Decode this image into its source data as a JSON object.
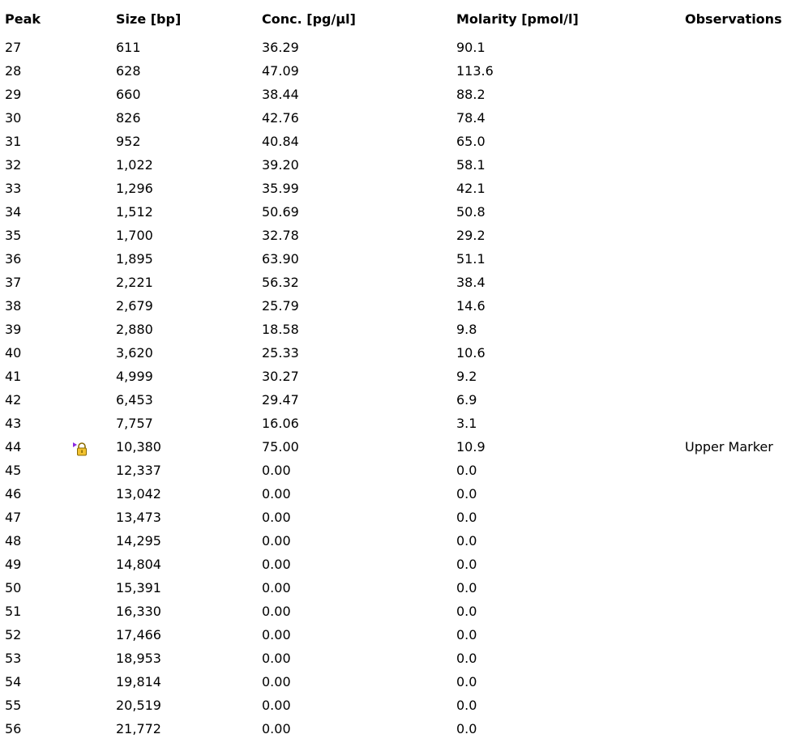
{
  "headers": {
    "peak": "Peak",
    "size": "Size [bp]",
    "conc": "Conc. [pg/µl]",
    "molarity": "Molarity [pmol/l]",
    "observations": "Observations"
  },
  "rows": [
    {
      "peak": "27",
      "size": "611",
      "conc": "36.29",
      "molarity": "90.1",
      "observations": "",
      "icon": ""
    },
    {
      "peak": "28",
      "size": "628",
      "conc": "47.09",
      "molarity": "113.6",
      "observations": "",
      "icon": ""
    },
    {
      "peak": "29",
      "size": "660",
      "conc": "38.44",
      "molarity": "88.2",
      "observations": "",
      "icon": ""
    },
    {
      "peak": "30",
      "size": "826",
      "conc": "42.76",
      "molarity": "78.4",
      "observations": "",
      "icon": ""
    },
    {
      "peak": "31",
      "size": "952",
      "conc": "40.84",
      "molarity": "65.0",
      "observations": "",
      "icon": ""
    },
    {
      "peak": "32",
      "size": "1,022",
      "conc": "39.20",
      "molarity": "58.1",
      "observations": "",
      "icon": ""
    },
    {
      "peak": "33",
      "size": "1,296",
      "conc": "35.99",
      "molarity": "42.1",
      "observations": "",
      "icon": ""
    },
    {
      "peak": "34",
      "size": "1,512",
      "conc": "50.69",
      "molarity": "50.8",
      "observations": "",
      "icon": ""
    },
    {
      "peak": "35",
      "size": "1,700",
      "conc": "32.78",
      "molarity": "29.2",
      "observations": "",
      "icon": ""
    },
    {
      "peak": "36",
      "size": "1,895",
      "conc": "63.90",
      "molarity": "51.1",
      "observations": "",
      "icon": ""
    },
    {
      "peak": "37",
      "size": "2,221",
      "conc": "56.32",
      "molarity": "38.4",
      "observations": "",
      "icon": ""
    },
    {
      "peak": "38",
      "size": "2,679",
      "conc": "25.79",
      "molarity": "14.6",
      "observations": "",
      "icon": ""
    },
    {
      "peak": "39",
      "size": "2,880",
      "conc": "18.58",
      "molarity": "9.8",
      "observations": "",
      "icon": ""
    },
    {
      "peak": "40",
      "size": "3,620",
      "conc": "25.33",
      "molarity": "10.6",
      "observations": "",
      "icon": ""
    },
    {
      "peak": "41",
      "size": "4,999",
      "conc": "30.27",
      "molarity": "9.2",
      "observations": "",
      "icon": ""
    },
    {
      "peak": "42",
      "size": "6,453",
      "conc": "29.47",
      "molarity": "6.9",
      "observations": "",
      "icon": ""
    },
    {
      "peak": "43",
      "size": "7,757",
      "conc": "16.06",
      "molarity": "3.1",
      "observations": "",
      "icon": ""
    },
    {
      "peak": "44",
      "size": "10,380",
      "conc": "75.00",
      "molarity": "10.9",
      "observations": "Upper Marker",
      "icon": "locked-marker-icon"
    },
    {
      "peak": "45",
      "size": "12,337",
      "conc": "0.00",
      "molarity": "0.0",
      "observations": "",
      "icon": ""
    },
    {
      "peak": "46",
      "size": "13,042",
      "conc": "0.00",
      "molarity": "0.0",
      "observations": "",
      "icon": ""
    },
    {
      "peak": "47",
      "size": "13,473",
      "conc": "0.00",
      "molarity": "0.0",
      "observations": "",
      "icon": ""
    },
    {
      "peak": "48",
      "size": "14,295",
      "conc": "0.00",
      "molarity": "0.0",
      "observations": "",
      "icon": ""
    },
    {
      "peak": "49",
      "size": "14,804",
      "conc": "0.00",
      "molarity": "0.0",
      "observations": "",
      "icon": ""
    },
    {
      "peak": "50",
      "size": "15,391",
      "conc": "0.00",
      "molarity": "0.0",
      "observations": "",
      "icon": ""
    },
    {
      "peak": "51",
      "size": "16,330",
      "conc": "0.00",
      "molarity": "0.0",
      "observations": "",
      "icon": ""
    },
    {
      "peak": "52",
      "size": "17,466",
      "conc": "0.00",
      "molarity": "0.0",
      "observations": "",
      "icon": ""
    },
    {
      "peak": "53",
      "size": "18,953",
      "conc": "0.00",
      "molarity": "0.0",
      "observations": "",
      "icon": ""
    },
    {
      "peak": "54",
      "size": "19,814",
      "conc": "0.00",
      "molarity": "0.0",
      "observations": "",
      "icon": ""
    },
    {
      "peak": "55",
      "size": "20,519",
      "conc": "0.00",
      "molarity": "0.0",
      "observations": "",
      "icon": ""
    },
    {
      "peak": "56",
      "size": "21,772",
      "conc": "0.00",
      "molarity": "0.0",
      "observations": "",
      "icon": ""
    }
  ],
  "colors": {
    "text": "#000000",
    "background": "#ffffff",
    "marker_flag": "#8a2be2",
    "lock_body": "#f2c230",
    "lock_outline": "#8a6a00"
  }
}
